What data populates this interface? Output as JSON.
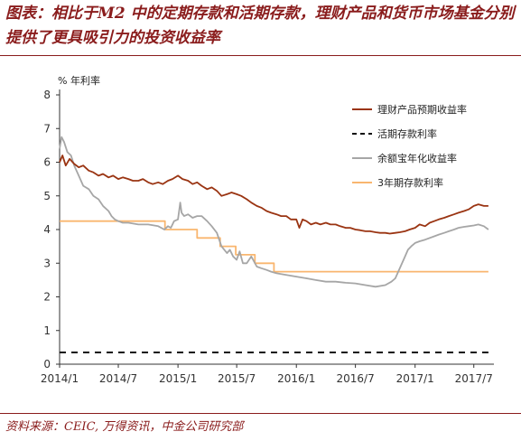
{
  "header": {
    "title": "图表：相比于M2 中的定期存款和活期存款，理财产品和货币市场基金分别提供了更具吸引力的投资收益率"
  },
  "footer": {
    "source": "资料来源：CEIC, 万得资讯，中金公司研究部"
  },
  "colors": {
    "title": "#8a1c1c",
    "wmp": "#9a3412",
    "demand": "#111111",
    "yuebao": "#a6a6a6",
    "deposit3y": "#f9b66f"
  },
  "chart_data": {
    "type": "line",
    "unit_label": "% 年利率",
    "ylim": [
      0,
      8
    ],
    "yticks": [
      0,
      1,
      2,
      3,
      4,
      5,
      6,
      7,
      8
    ],
    "x_range": [
      "2014-01",
      "2017-09"
    ],
    "xticks": [
      {
        "x": "2014-01",
        "label": "2014/1"
      },
      {
        "x": "2014-07",
        "label": "2014/7"
      },
      {
        "x": "2015-01",
        "label": "2015/1"
      },
      {
        "x": "2015-07",
        "label": "2015/7"
      },
      {
        "x": "2016-01",
        "label": "2016/1"
      },
      {
        "x": "2016-07",
        "label": "2016/7"
      },
      {
        "x": "2017-01",
        "label": "2017/1"
      },
      {
        "x": "2017-07",
        "label": "2017/7"
      }
    ],
    "legend_position": "top-right",
    "grid": false,
    "series": [
      {
        "name": "理财产品预期收益率",
        "key": "wmp",
        "style": "solid",
        "points": [
          [
            "2014-01-01",
            6.0
          ],
          [
            "2014-01-10",
            6.2
          ],
          [
            "2014-01-20",
            5.9
          ],
          [
            "2014-02-01",
            6.1
          ],
          [
            "2014-02-15",
            5.95
          ],
          [
            "2014-03-01",
            5.85
          ],
          [
            "2014-03-15",
            5.9
          ],
          [
            "2014-04-01",
            5.75
          ],
          [
            "2014-04-15",
            5.7
          ],
          [
            "2014-05-01",
            5.6
          ],
          [
            "2014-05-15",
            5.65
          ],
          [
            "2014-06-01",
            5.55
          ],
          [
            "2014-06-15",
            5.6
          ],
          [
            "2014-07-01",
            5.5
          ],
          [
            "2014-07-15",
            5.55
          ],
          [
            "2014-08-01",
            5.5
          ],
          [
            "2014-08-15",
            5.45
          ],
          [
            "2014-09-01",
            5.45
          ],
          [
            "2014-09-15",
            5.5
          ],
          [
            "2014-10-01",
            5.4
          ],
          [
            "2014-10-15",
            5.35
          ],
          [
            "2014-11-01",
            5.4
          ],
          [
            "2014-11-15",
            5.35
          ],
          [
            "2014-12-01",
            5.45
          ],
          [
            "2014-12-15",
            5.5
          ],
          [
            "2015-01-01",
            5.6
          ],
          [
            "2015-01-15",
            5.5
          ],
          [
            "2015-02-01",
            5.45
          ],
          [
            "2015-02-15",
            5.35
          ],
          [
            "2015-03-01",
            5.4
          ],
          [
            "2015-03-15",
            5.3
          ],
          [
            "2015-04-01",
            5.2
          ],
          [
            "2015-04-15",
            5.25
          ],
          [
            "2015-05-01",
            5.15
          ],
          [
            "2015-05-15",
            5.0
          ],
          [
            "2015-06-01",
            5.05
          ],
          [
            "2015-06-15",
            5.1
          ],
          [
            "2015-07-01",
            5.05
          ],
          [
            "2015-07-15",
            5.0
          ],
          [
            "2015-08-01",
            4.9
          ],
          [
            "2015-08-15",
            4.8
          ],
          [
            "2015-09-01",
            4.7
          ],
          [
            "2015-09-15",
            4.65
          ],
          [
            "2015-10-01",
            4.55
          ],
          [
            "2015-10-15",
            4.5
          ],
          [
            "2015-11-01",
            4.45
          ],
          [
            "2015-11-15",
            4.4
          ],
          [
            "2015-12-01",
            4.4
          ],
          [
            "2015-12-15",
            4.3
          ],
          [
            "2016-01-01",
            4.3
          ],
          [
            "2016-01-10",
            4.05
          ],
          [
            "2016-01-20",
            4.3
          ],
          [
            "2016-02-01",
            4.25
          ],
          [
            "2016-02-15",
            4.15
          ],
          [
            "2016-03-01",
            4.2
          ],
          [
            "2016-03-15",
            4.15
          ],
          [
            "2016-04-01",
            4.2
          ],
          [
            "2016-04-15",
            4.15
          ],
          [
            "2016-05-01",
            4.15
          ],
          [
            "2016-05-15",
            4.1
          ],
          [
            "2016-06-01",
            4.05
          ],
          [
            "2016-06-15",
            4.05
          ],
          [
            "2016-07-01",
            4.0
          ],
          [
            "2016-07-15",
            3.98
          ],
          [
            "2016-08-01",
            3.95
          ],
          [
            "2016-08-15",
            3.95
          ],
          [
            "2016-09-01",
            3.92
          ],
          [
            "2016-09-15",
            3.9
          ],
          [
            "2016-10-01",
            3.9
          ],
          [
            "2016-10-15",
            3.88
          ],
          [
            "2016-11-01",
            3.9
          ],
          [
            "2016-11-15",
            3.92
          ],
          [
            "2016-12-01",
            3.95
          ],
          [
            "2016-12-15",
            4.0
          ],
          [
            "2017-01-01",
            4.05
          ],
          [
            "2017-01-15",
            4.15
          ],
          [
            "2017-02-01",
            4.1
          ],
          [
            "2017-02-15",
            4.2
          ],
          [
            "2017-03-01",
            4.25
          ],
          [
            "2017-03-15",
            4.3
          ],
          [
            "2017-04-01",
            4.35
          ],
          [
            "2017-04-15",
            4.4
          ],
          [
            "2017-05-01",
            4.45
          ],
          [
            "2017-05-15",
            4.5
          ],
          [
            "2017-06-01",
            4.55
          ],
          [
            "2017-06-15",
            4.6
          ],
          [
            "2017-07-01",
            4.7
          ],
          [
            "2017-07-15",
            4.75
          ],
          [
            "2017-08-01",
            4.7
          ],
          [
            "2017-08-15",
            4.7
          ]
        ]
      },
      {
        "name": "活期存款利率",
        "key": "demand",
        "style": "dashed",
        "points": [
          [
            "2014-01-01",
            0.35
          ],
          [
            "2017-08-15",
            0.35
          ]
        ]
      },
      {
        "name": "余额宝年化收益率",
        "key": "yuebao",
        "style": "solid",
        "points": [
          [
            "2014-01-01",
            6.4
          ],
          [
            "2014-01-07",
            6.75
          ],
          [
            "2014-01-15",
            6.6
          ],
          [
            "2014-01-25",
            6.3
          ],
          [
            "2014-02-05",
            6.2
          ],
          [
            "2014-02-15",
            5.9
          ],
          [
            "2014-03-01",
            5.6
          ],
          [
            "2014-03-15",
            5.3
          ],
          [
            "2014-04-01",
            5.2
          ],
          [
            "2014-04-15",
            5.0
          ],
          [
            "2014-05-01",
            4.9
          ],
          [
            "2014-05-15",
            4.7
          ],
          [
            "2014-06-01",
            4.55
          ],
          [
            "2014-06-10",
            4.4
          ],
          [
            "2014-06-20",
            4.3
          ],
          [
            "2014-07-01",
            4.25
          ],
          [
            "2014-07-15",
            4.2
          ],
          [
            "2014-08-01",
            4.2
          ],
          [
            "2014-09-01",
            4.15
          ],
          [
            "2014-10-01",
            4.15
          ],
          [
            "2014-11-01",
            4.1
          ],
          [
            "2014-11-20",
            4.0
          ],
          [
            "2014-12-01",
            4.1
          ],
          [
            "2014-12-10",
            4.05
          ],
          [
            "2014-12-20",
            4.25
          ],
          [
            "2015-01-01",
            4.3
          ],
          [
            "2015-01-08",
            4.8
          ],
          [
            "2015-01-12",
            4.5
          ],
          [
            "2015-01-20",
            4.4
          ],
          [
            "2015-02-01",
            4.45
          ],
          [
            "2015-02-15",
            4.35
          ],
          [
            "2015-03-01",
            4.4
          ],
          [
            "2015-03-15",
            4.4
          ],
          [
            "2015-04-01",
            4.25
          ],
          [
            "2015-04-15",
            4.1
          ],
          [
            "2015-05-01",
            3.9
          ],
          [
            "2015-05-15",
            3.5
          ],
          [
            "2015-06-01",
            3.3
          ],
          [
            "2015-06-10",
            3.4
          ],
          [
            "2015-06-20",
            3.2
          ],
          [
            "2015-07-01",
            3.1
          ],
          [
            "2015-07-10",
            3.35
          ],
          [
            "2015-07-20",
            3.0
          ],
          [
            "2015-08-01",
            3.0
          ],
          [
            "2015-08-15",
            3.2
          ],
          [
            "2015-09-01",
            2.9
          ],
          [
            "2015-09-15",
            2.85
          ],
          [
            "2015-10-01",
            2.8
          ],
          [
            "2015-10-15",
            2.75
          ],
          [
            "2015-11-01",
            2.7
          ],
          [
            "2015-12-01",
            2.65
          ],
          [
            "2016-01-01",
            2.6
          ],
          [
            "2016-02-01",
            2.55
          ],
          [
            "2016-03-01",
            2.5
          ],
          [
            "2016-04-01",
            2.45
          ],
          [
            "2016-05-01",
            2.45
          ],
          [
            "2016-06-01",
            2.42
          ],
          [
            "2016-07-01",
            2.4
          ],
          [
            "2016-08-01",
            2.35
          ],
          [
            "2016-09-01",
            2.3
          ],
          [
            "2016-10-01",
            2.35
          ],
          [
            "2016-10-20",
            2.45
          ],
          [
            "2016-11-01",
            2.55
          ],
          [
            "2016-11-15",
            2.85
          ],
          [
            "2016-12-01",
            3.2
          ],
          [
            "2016-12-10",
            3.4
          ],
          [
            "2016-12-20",
            3.5
          ],
          [
            "2017-01-01",
            3.6
          ],
          [
            "2017-01-15",
            3.65
          ],
          [
            "2017-02-01",
            3.7
          ],
          [
            "2017-03-01",
            3.8
          ],
          [
            "2017-03-15",
            3.85
          ],
          [
            "2017-04-01",
            3.9
          ],
          [
            "2017-04-15",
            3.95
          ],
          [
            "2017-05-01",
            4.0
          ],
          [
            "2017-05-15",
            4.05
          ],
          [
            "2017-06-01",
            4.08
          ],
          [
            "2017-06-15",
            4.1
          ],
          [
            "2017-07-01",
            4.12
          ],
          [
            "2017-07-15",
            4.15
          ],
          [
            "2017-08-01",
            4.1
          ],
          [
            "2017-08-15",
            4.0
          ]
        ]
      },
      {
        "name": "3年期存款利率",
        "key": "deposit3y",
        "style": "step",
        "points": [
          [
            "2014-01-01",
            4.25
          ],
          [
            "2014-11-22",
            4.25
          ],
          [
            "2014-11-22",
            4.0
          ],
          [
            "2015-03-01",
            4.0
          ],
          [
            "2015-03-01",
            3.75
          ],
          [
            "2015-05-11",
            3.75
          ],
          [
            "2015-05-11",
            3.5
          ],
          [
            "2015-06-28",
            3.5
          ],
          [
            "2015-06-28",
            3.25
          ],
          [
            "2015-08-26",
            3.25
          ],
          [
            "2015-08-26",
            3.0
          ],
          [
            "2015-10-24",
            3.0
          ],
          [
            "2015-10-24",
            2.75
          ],
          [
            "2017-08-15",
            2.75
          ]
        ]
      }
    ]
  }
}
